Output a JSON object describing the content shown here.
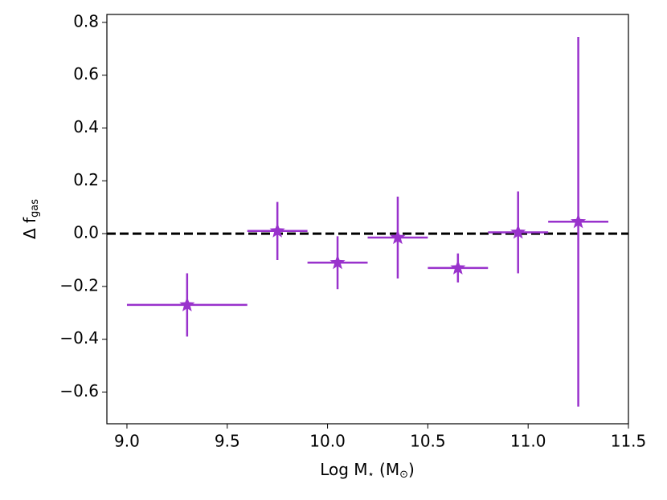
{
  "chart_data": {
    "type": "errorbar",
    "x": [
      9.3,
      9.75,
      10.05,
      10.35,
      10.65,
      10.95,
      11.25
    ],
    "y": [
      -0.27,
      0.01,
      -0.11,
      -0.015,
      -0.13,
      0.005,
      0.045
    ],
    "xerr": [
      0.3,
      0.15,
      0.15,
      0.15,
      0.15,
      0.15,
      0.15
    ],
    "yerr": [
      0.12,
      0.11,
      0.1,
      0.155,
      0.055,
      0.155,
      0.7
    ],
    "color": "#9932cc",
    "marker": "star",
    "hline": 0,
    "xlim": [
      8.9,
      11.5
    ],
    "ylim": [
      -0.72,
      0.83
    ],
    "xticks": [
      {
        "value": 9,
        "label": "9.0"
      },
      {
        "value": 9.5,
        "label": "9.5"
      },
      {
        "value": 10,
        "label": "10.0"
      },
      {
        "value": 10.5,
        "label": "10.5"
      },
      {
        "value": 11,
        "label": "11.0"
      },
      {
        "value": 11.5,
        "label": "11.5"
      }
    ],
    "yticks": [
      {
        "value": -0.6,
        "label": "−0.6"
      },
      {
        "value": -0.4,
        "label": "−0.4"
      },
      {
        "value": -0.2,
        "label": "−0.2"
      },
      {
        "value": 0,
        "label": "0.0"
      },
      {
        "value": 0.2,
        "label": "0.2"
      },
      {
        "value": 0.4,
        "label": "0.4"
      },
      {
        "value": 0.6,
        "label": "0.6"
      },
      {
        "value": 0.8,
        "label": "0.8"
      }
    ],
    "xlabel_parts": [
      "Log M",
      "⋆",
      " (M",
      "⊙",
      ")"
    ],
    "ylabel_parts": [
      "Δ f",
      "gas"
    ]
  }
}
